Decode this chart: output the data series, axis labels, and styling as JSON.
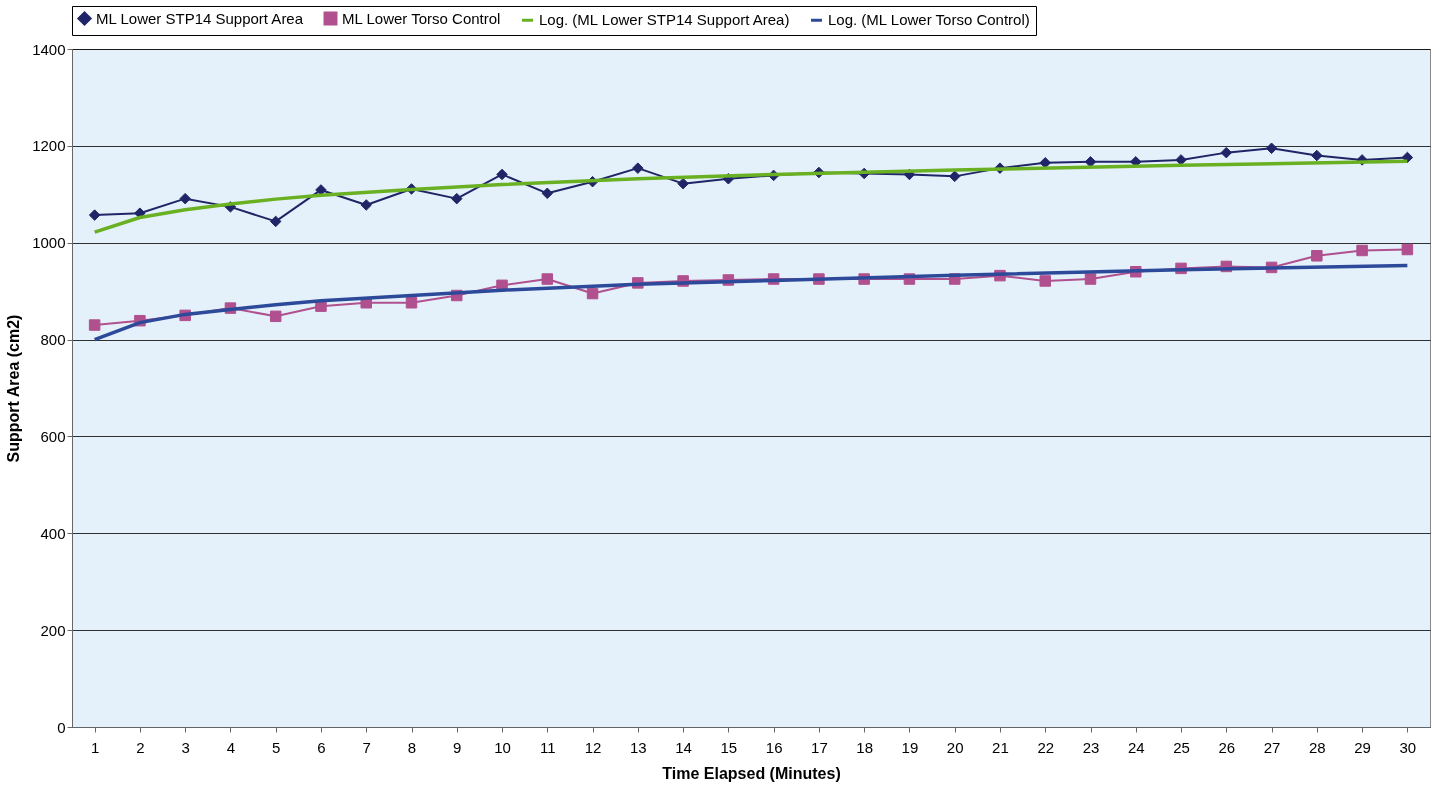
{
  "chart_data": {
    "type": "line",
    "xlabel": "Time Elapsed (Minutes)",
    "ylabel": "Support Area (cm2)",
    "x": [
      1,
      2,
      3,
      4,
      5,
      6,
      7,
      8,
      9,
      10,
      11,
      12,
      13,
      14,
      15,
      16,
      17,
      18,
      19,
      20,
      21,
      22,
      23,
      24,
      25,
      26,
      27,
      28,
      29,
      30
    ],
    "xlim": [
      0.5,
      30.5
    ],
    "xticks": [
      1,
      2,
      3,
      4,
      5,
      6,
      7,
      8,
      9,
      10,
      11,
      12,
      13,
      14,
      15,
      16,
      17,
      18,
      19,
      20,
      21,
      22,
      23,
      24,
      25,
      26,
      27,
      28,
      29,
      30
    ],
    "ylim": [
      0,
      1400
    ],
    "yticks": [
      0,
      200,
      400,
      600,
      800,
      1000,
      1200,
      1400
    ],
    "grid": "y",
    "legend": "top",
    "line_style": "solid",
    "series": [
      {
        "name": "ML Lower STP14 Support Area",
        "color": "#1f2566",
        "marker": "diamond",
        "values": [
          1057,
          1061,
          1091,
          1074,
          1044,
          1109,
          1078,
          1111,
          1091,
          1141,
          1102,
          1126,
          1154,
          1122,
          1132,
          1139,
          1145,
          1143,
          1141,
          1137,
          1154,
          1165,
          1167,
          1167,
          1171,
          1186,
          1195,
          1180,
          1171,
          1176
        ]
      },
      {
        "name": "ML Lower Torso Control",
        "color": "#b0508f",
        "marker": "square",
        "values": [
          830,
          839,
          850,
          865,
          848,
          869,
          876,
          876,
          891,
          912,
          925,
          895,
          917,
          921,
          923,
          925,
          925,
          925,
          925,
          925,
          932,
          921,
          925,
          940,
          947,
          951,
          949,
          973,
          984,
          986
        ]
      },
      {
        "name": "Log. (ML Lower STP14 Support Area)",
        "color": "#6ab023",
        "marker": "none",
        "type": "line",
        "x": [
          1,
          2,
          3,
          4,
          5,
          6,
          8,
          10,
          13,
          16,
          20,
          25,
          30
        ],
        "values": [
          1022,
          1052,
          1068,
          1080,
          1090,
          1098,
          1110,
          1120,
          1132,
          1141,
          1150,
          1160,
          1168
        ]
      },
      {
        "name": "Log. (ML Lower Torso Control)",
        "color": "#2d4a9a",
        "marker": "none",
        "type": "line",
        "x": [
          1,
          2,
          3,
          4,
          5,
          6,
          8,
          10,
          13,
          16,
          20,
          25,
          30
        ],
        "values": [
          800,
          835,
          852,
          862,
          872,
          880,
          891,
          902,
          914,
          922,
          933,
          944,
          953
        ]
      }
    ]
  }
}
